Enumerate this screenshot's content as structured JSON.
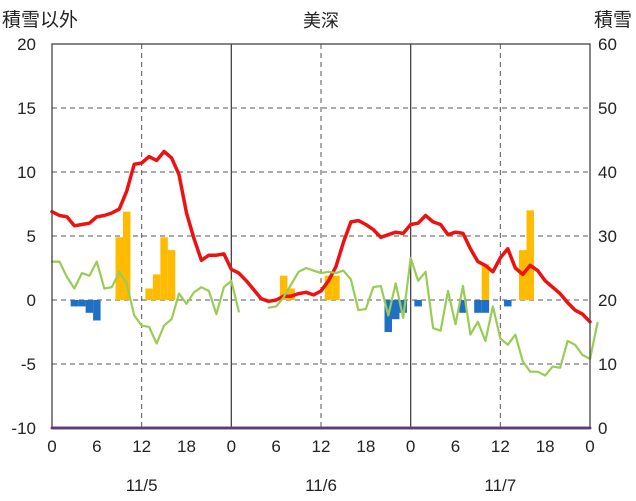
{
  "chart_data": {
    "type": "bar+line",
    "title": "美深",
    "ylabel_left": "積雪以外",
    "ylabel_right": "積雪",
    "y_left": {
      "min": -10,
      "max": 20,
      "ticks": [
        20,
        15,
        10,
        5,
        0,
        -5,
        -10
      ]
    },
    "y_right": {
      "min": 0,
      "max": 60,
      "ticks": [
        60,
        50,
        40,
        30,
        20,
        10,
        0
      ]
    },
    "x": {
      "min": 0,
      "max": 72,
      "hour_ticks": [
        0,
        6,
        12,
        18,
        0,
        6,
        12,
        18,
        0,
        6,
        12,
        18,
        0
      ]
    },
    "date_labels": [
      {
        "hour": 12,
        "text": "11/5"
      },
      {
        "hour": 36,
        "text": "11/6"
      },
      {
        "hour": 60,
        "text": "11/7"
      }
    ],
    "grid": {
      "dashed_vertical_hours": [
        12,
        36,
        60
      ],
      "solid_vertical_hours": [
        24,
        48
      ],
      "horizontal": true
    },
    "series": [
      {
        "kind": "line",
        "axis": "left",
        "color": "#ee1111",
        "points": [
          [
            0,
            6.9
          ],
          [
            1,
            6.6
          ],
          [
            2,
            6.5
          ],
          [
            3,
            5.8
          ],
          [
            4,
            5.9
          ],
          [
            5,
            6.0
          ],
          [
            6,
            6.5
          ],
          [
            7,
            6.6
          ],
          [
            8,
            6.8
          ],
          [
            9,
            7.1
          ],
          [
            10,
            8.5
          ],
          [
            11,
            10.6
          ],
          [
            12,
            10.7
          ],
          [
            13,
            11.2
          ],
          [
            14,
            10.9
          ],
          [
            15,
            11.6
          ],
          [
            16,
            11.1
          ],
          [
            17,
            9.8
          ],
          [
            18,
            6.8
          ],
          [
            19,
            4.8
          ],
          [
            20,
            3.1
          ],
          [
            21,
            3.5
          ],
          [
            22,
            3.5
          ],
          [
            23,
            3.6
          ],
          [
            24,
            2.4
          ],
          [
            25,
            2.1
          ],
          [
            26,
            1.5
          ],
          [
            27,
            0.8
          ],
          [
            28,
            0.1
          ],
          [
            29,
            -0.1
          ],
          [
            30,
            0.0
          ],
          [
            31,
            0.3
          ],
          [
            32,
            0.3
          ],
          [
            33,
            0.5
          ],
          [
            34,
            0.6
          ],
          [
            35,
            0.4
          ],
          [
            36,
            0.7
          ],
          [
            37,
            1.5
          ],
          [
            38,
            2.6
          ],
          [
            39,
            4.5
          ],
          [
            40,
            6.1
          ],
          [
            41,
            6.2
          ],
          [
            42,
            5.9
          ],
          [
            43,
            5.5
          ],
          [
            44,
            4.9
          ],
          [
            45,
            5.1
          ],
          [
            46,
            5.3
          ],
          [
            47,
            5.2
          ],
          [
            48,
            5.9
          ],
          [
            49,
            6.0
          ],
          [
            50,
            6.6
          ],
          [
            51,
            6.1
          ],
          [
            52,
            5.9
          ],
          [
            53,
            5.1
          ],
          [
            54,
            5.3
          ],
          [
            55,
            5.2
          ],
          [
            56,
            4.0
          ],
          [
            57,
            3.0
          ],
          [
            58,
            2.7
          ],
          [
            59,
            2.2
          ],
          [
            60,
            3.3
          ],
          [
            61,
            4.0
          ],
          [
            62,
            2.5
          ],
          [
            63,
            2.0
          ],
          [
            64,
            2.7
          ],
          [
            65,
            2.3
          ],
          [
            66,
            1.5
          ],
          [
            67,
            1.0
          ],
          [
            68,
            0.5
          ],
          [
            69,
            -0.2
          ],
          [
            70,
            -0.8
          ],
          [
            71,
            -1.1
          ],
          [
            72,
            -1.7
          ]
        ]
      },
      {
        "kind": "line",
        "axis": "left",
        "color": "#99cc55",
        "segments": [
          [
            [
              0,
              3.0
            ],
            [
              1,
              3.0
            ],
            [
              2,
              1.8
            ],
            [
              3,
              0.9
            ],
            [
              4,
              2.1
            ],
            [
              5,
              1.9
            ],
            [
              6,
              3.0
            ],
            [
              7,
              0.9
            ],
            [
              8,
              1.0
            ],
            [
              9,
              2.2
            ],
            [
              10,
              1.3
            ],
            [
              11,
              -1.2
            ],
            [
              12,
              -2.0
            ],
            [
              13,
              -2.1
            ],
            [
              14,
              -3.4
            ],
            [
              15,
              -2.0
            ],
            [
              16,
              -1.5
            ],
            [
              17,
              0.5
            ],
            [
              18,
              -0.3
            ],
            [
              19,
              0.6
            ],
            [
              20,
              1.0
            ],
            [
              21,
              0.7
            ],
            [
              22,
              -1.1
            ],
            [
              23,
              1.0
            ],
            [
              24,
              1.5
            ],
            [
              25,
              -0.9
            ]
          ],
          [
            [
              29,
              -0.6
            ],
            [
              30,
              -0.5
            ],
            [
              31,
              0.2
            ],
            [
              32,
              1.2
            ],
            [
              33,
              2.2
            ],
            [
              34,
              2.5
            ],
            [
              35,
              2.3
            ],
            [
              36,
              2.1
            ],
            [
              37,
              2.2
            ],
            [
              38,
              2.1
            ],
            [
              39,
              2.3
            ],
            [
              40,
              1.6
            ],
            [
              41,
              -0.8
            ],
            [
              42,
              -0.7
            ],
            [
              43,
              1.0
            ],
            [
              44,
              1.1
            ],
            [
              45,
              -1.2
            ],
            [
              46,
              1.3
            ],
            [
              47,
              -1.4
            ],
            [
              48,
              3.3
            ],
            [
              49,
              1.5
            ],
            [
              50,
              2.2
            ],
            [
              51,
              -2.2
            ],
            [
              52,
              -2.4
            ],
            [
              53,
              0.7
            ],
            [
              54,
              -1.9
            ],
            [
              55,
              1.1
            ],
            [
              56,
              -2.7
            ],
            [
              57,
              -1.7
            ],
            [
              58,
              -3.2
            ],
            [
              59,
              -0.5
            ],
            [
              60,
              -3.0
            ],
            [
              61,
              -3.5
            ],
            [
              62,
              -2.7
            ],
            [
              63,
              -4.8
            ],
            [
              64,
              -5.6
            ],
            [
              65,
              -5.6
            ],
            [
              66,
              -5.9
            ],
            [
              67,
              -5.2
            ],
            [
              68,
              -5.3
            ],
            [
              69,
              -3.2
            ],
            [
              70,
              -3.5
            ],
            [
              71,
              -4.3
            ],
            [
              72,
              -4.6
            ],
            [
              73,
              -1.8
            ]
          ]
        ]
      },
      {
        "kind": "line",
        "axis": "right",
        "color": "#7744aa",
        "points": [
          [
            0,
            0
          ],
          [
            72,
            0
          ]
        ]
      },
      {
        "kind": "bar",
        "axis": "left",
        "color": "#ffbb00",
        "bars": [
          [
            9,
            4.9
          ],
          [
            10,
            6.9
          ],
          [
            13,
            0.9
          ],
          [
            14,
            2.0
          ],
          [
            15,
            4.9
          ],
          [
            16,
            3.9
          ],
          [
            31,
            1.9
          ],
          [
            32,
            0.9
          ],
          [
            37,
            1.9
          ],
          [
            38,
            1.9
          ],
          [
            58,
            2.8
          ],
          [
            63,
            3.9
          ],
          [
            64,
            7.0
          ]
        ]
      },
      {
        "kind": "bar",
        "axis": "left",
        "color": "#1f6fc5",
        "bars": [
          [
            3,
            -0.5
          ],
          [
            4,
            -0.5
          ],
          [
            5,
            -1.0
          ],
          [
            6,
            -1.6
          ],
          [
            45,
            -2.5
          ],
          [
            46,
            -1.5
          ],
          [
            47,
            -1.0
          ],
          [
            49,
            -0.5
          ],
          [
            55,
            -1.0
          ],
          [
            57,
            -1.0
          ],
          [
            58,
            -1.0
          ],
          [
            61,
            -0.5
          ]
        ]
      }
    ]
  }
}
